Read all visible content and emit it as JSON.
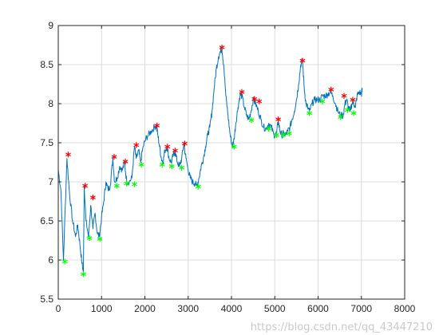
{
  "chart_data": {
    "type": "line",
    "title": "",
    "xlabel": "",
    "ylabel": "",
    "xlim": [
      0,
      8000
    ],
    "ylim": [
      5.5,
      9
    ],
    "grid": true,
    "xticks": [
      0,
      1000,
      2000,
      3000,
      4000,
      5000,
      6000,
      7000,
      8000
    ],
    "xtick_labels": [
      "0",
      "1000",
      "2000",
      "3000",
      "4000",
      "5000",
      "6000",
      "7000",
      "8000"
    ],
    "yticks": [
      5.5,
      6,
      6.5,
      7,
      7.5,
      8,
      8.5,
      9
    ],
    "ytick_labels": [
      "5.5",
      "6",
      "6.5",
      "7",
      "7.5",
      "8",
      "8.5",
      "9"
    ],
    "colors": {
      "line": "#0072BD",
      "peaks": "#FF0000",
      "troughs": "#00FF00",
      "grid": "#dcdcdc",
      "axis": "#262626"
    },
    "series": [
      {
        "kind": "line",
        "x": [
          0,
          60,
          120,
          200,
          260,
          330,
          400,
          450,
          500,
          550,
          580,
          600,
          640,
          700,
          750,
          800,
          850,
          900,
          950,
          1000,
          1050,
          1100,
          1150,
          1200,
          1260,
          1300,
          1360,
          1420,
          1480,
          1530,
          1580,
          1640,
          1700,
          1760,
          1800,
          1860,
          1900,
          1960,
          2020,
          2080,
          2150,
          2220,
          2260,
          2300,
          2340,
          2380,
          2420,
          2460,
          2510,
          2560,
          2610,
          2660,
          2700,
          2750,
          2800,
          2850,
          2900,
          2950,
          3000,
          3050,
          3100,
          3150,
          3200,
          3250,
          3300,
          3350,
          3400,
          3450,
          3500,
          3550,
          3600,
          3650,
          3700,
          3750,
          3780,
          3820,
          3870,
          3920,
          3970,
          4020,
          4060,
          4100,
          4150,
          4200,
          4240,
          4300,
          4350,
          4400,
          4450,
          4500,
          4560,
          4620,
          4680,
          4740,
          4800,
          4860,
          4920,
          4980,
          5040,
          5080,
          5120,
          5160,
          5200,
          5250,
          5300,
          5350,
          5400,
          5450,
          5500,
          5550,
          5600,
          5640,
          5680,
          5720,
          5760,
          5800,
          5860,
          5920,
          5980,
          6040,
          6100,
          6160,
          6220,
          6280,
          6340,
          6400,
          6460,
          6520,
          6580,
          6620,
          6660,
          6700,
          6740,
          6780,
          6820,
          6860,
          6900,
          6950,
          7000,
          7020
        ],
        "y": [
          7.15,
          6.9,
          6.0,
          7.3,
          6.85,
          6.5,
          6.3,
          6.45,
          6.2,
          5.95,
          5.85,
          6.95,
          6.5,
          6.3,
          6.7,
          6.4,
          6.6,
          6.35,
          6.3,
          6.55,
          6.75,
          7.0,
          6.9,
          6.95,
          7.3,
          7.0,
          7.05,
          7.2,
          7.15,
          7.25,
          7.0,
          7.0,
          7.05,
          7.45,
          7.3,
          7.4,
          7.25,
          7.45,
          7.55,
          7.6,
          7.65,
          7.7,
          7.72,
          7.6,
          7.45,
          7.3,
          7.25,
          7.4,
          7.45,
          7.3,
          7.25,
          7.35,
          7.38,
          7.25,
          7.2,
          7.3,
          7.48,
          7.3,
          7.15,
          7.05,
          7.0,
          6.98,
          6.95,
          7.05,
          7.2,
          7.3,
          7.45,
          7.6,
          7.7,
          7.9,
          8.2,
          8.45,
          8.6,
          8.68,
          8.7,
          8.5,
          8.1,
          7.85,
          7.6,
          7.45,
          7.55,
          7.75,
          7.95,
          8.12,
          8.1,
          7.95,
          7.85,
          7.8,
          7.9,
          8.05,
          8.0,
          7.9,
          7.8,
          7.7,
          7.68,
          7.75,
          7.7,
          7.6,
          7.62,
          7.78,
          7.65,
          7.6,
          7.62,
          7.6,
          7.65,
          7.7,
          7.8,
          7.9,
          8.05,
          8.25,
          8.5,
          8.55,
          8.2,
          8.0,
          7.95,
          7.9,
          8.0,
          8.05,
          8.05,
          8.05,
          8.1,
          8.1,
          8.12,
          8.15,
          8.1,
          8.0,
          7.9,
          7.85,
          7.85,
          8.0,
          8.05,
          7.95,
          7.9,
          8.0,
          8.02,
          7.95,
          8.1,
          8.15,
          8.12,
          8.18
        ]
      },
      {
        "kind": "peaks",
        "marker": "*",
        "x": [
          230,
          620,
          800,
          1290,
          1550,
          1800,
          2280,
          2520,
          2700,
          2920,
          3780,
          4240,
          4530,
          4640,
          5080,
          5640,
          6300,
          6600,
          6800
        ],
        "y": [
          7.35,
          6.95,
          6.8,
          7.32,
          7.26,
          7.47,
          7.72,
          7.45,
          7.4,
          7.49,
          8.72,
          8.15,
          8.06,
          8.03,
          7.8,
          8.55,
          8.18,
          8.1,
          8.05
        ]
      },
      {
        "kind": "troughs",
        "marker": "*",
        "x": [
          150,
          580,
          720,
          960,
          1350,
          1580,
          1760,
          1920,
          2400,
          2620,
          2850,
          3230,
          4060,
          4460,
          4860,
          5040,
          5200,
          5330,
          5800,
          6100,
          6520,
          6680,
          6820
        ],
        "y": [
          5.98,
          5.82,
          6.28,
          6.27,
          6.95,
          6.98,
          6.97,
          7.22,
          7.22,
          7.2,
          7.18,
          6.94,
          7.45,
          7.79,
          7.68,
          7.6,
          7.6,
          7.62,
          7.88,
          8.03,
          7.83,
          7.92,
          7.88
        ]
      }
    ]
  },
  "watermark": "https://blog.csdn.net/qq_43447210"
}
